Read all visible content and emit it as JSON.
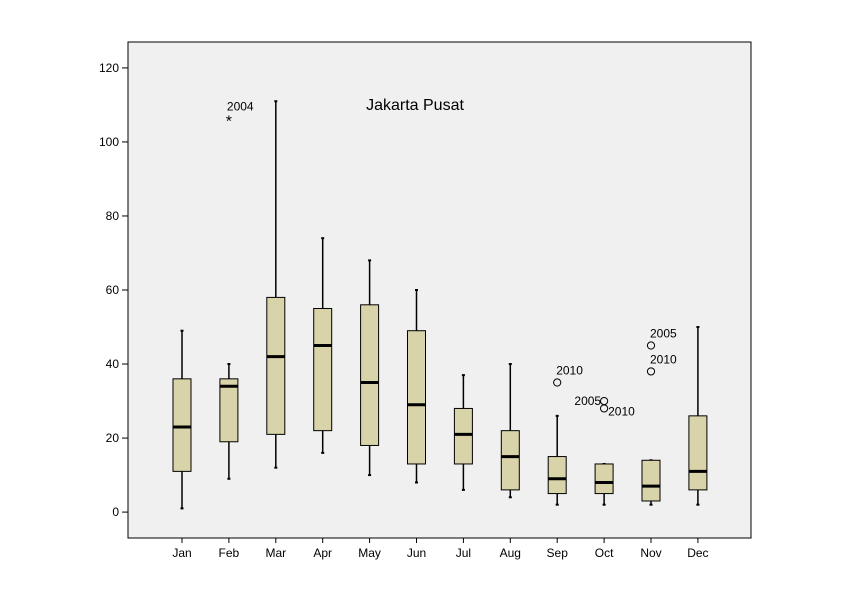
{
  "chart_data": {
    "type": "boxplot",
    "title": "Jakarta Pusat",
    "xlabel": "",
    "ylabel": "",
    "ylim": [
      -7,
      127
    ],
    "yticks": [
      0,
      20,
      40,
      60,
      80,
      100,
      120
    ],
    "ytick_labels": [
      "0",
      "20",
      "40",
      "60",
      "80",
      "100",
      "120"
    ],
    "categories": [
      "Jan",
      "Feb",
      "Mar",
      "Apr",
      "May",
      "Jun",
      "Jul",
      "Aug",
      "Sep",
      "Oct",
      "Nov",
      "Dec"
    ],
    "boxes": [
      {
        "min": 1,
        "q1": 11,
        "median": 23,
        "q3": 36,
        "max": 49
      },
      {
        "min": 9,
        "q1": 19,
        "median": 34,
        "q3": 36,
        "max": 40
      },
      {
        "min": 12,
        "q1": 21,
        "median": 42,
        "q3": 58,
        "max": 111
      },
      {
        "min": 16,
        "q1": 22,
        "median": 45,
        "q3": 55,
        "max": 74
      },
      {
        "min": 10,
        "q1": 18,
        "median": 35,
        "q3": 56,
        "max": 68
      },
      {
        "min": 8,
        "q1": 13,
        "median": 29,
        "q3": 49,
        "max": 60
      },
      {
        "min": 6,
        "q1": 13,
        "median": 21,
        "q3": 28,
        "max": 37
      },
      {
        "min": 4,
        "q1": 6,
        "median": 15,
        "q3": 22,
        "max": 40
      },
      {
        "min": 2,
        "q1": 5,
        "median": 9,
        "q3": 15,
        "max": 26
      },
      {
        "min": 2,
        "q1": 5,
        "median": 8,
        "q3": 13,
        "max": 13
      },
      {
        "min": 2,
        "q1": 3,
        "median": 7,
        "q3": 14,
        "max": 14
      },
      {
        "min": 2,
        "q1": 6,
        "median": 11,
        "q3": 26,
        "max": 50
      }
    ],
    "outliers": [
      {
        "category": "Feb",
        "value": 106,
        "label": "2004",
        "marker": "star"
      },
      {
        "category": "Sep",
        "value": 35,
        "label": "2010",
        "marker": "circle"
      },
      {
        "category": "Oct",
        "value": 30,
        "label": "2005",
        "marker": "circle"
      },
      {
        "category": "Oct",
        "value": 28,
        "label": "2010",
        "marker": "circle"
      },
      {
        "category": "Nov",
        "value": 45,
        "label": "2005",
        "marker": "circle"
      },
      {
        "category": "Nov",
        "value": 38,
        "label": "2010",
        "marker": "circle"
      }
    ],
    "colors": {
      "plot_background": "#f0f0f0",
      "box_fill": "#d8d3a8",
      "stroke": "#000000"
    }
  }
}
